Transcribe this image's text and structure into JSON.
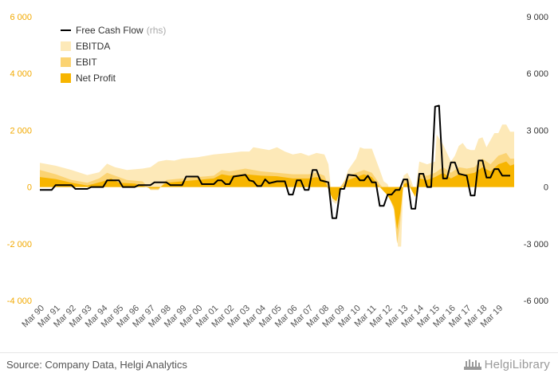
{
  "chart_data": {
    "type": "area",
    "title": "",
    "colors": {
      "ebitda": "#fde9b8",
      "ebit": "#fbd372",
      "net_profit": "#f7b500",
      "fcf": "#000000",
      "left_axis_text": "#f2a900",
      "right_axis_text": "#333333"
    },
    "left_axis": {
      "ylim": [
        -4000,
        6000
      ],
      "ticks": [
        "-4 000",
        "-2 000",
        "0",
        "2 000",
        "4 000",
        "6 000"
      ],
      "tick_values": [
        -4000,
        -2000,
        0,
        2000,
        4000,
        6000
      ]
    },
    "right_axis": {
      "ylim": [
        -6000,
        9000
      ],
      "ticks": [
        "-6 000",
        "-3 000",
        "0",
        "3 000",
        "6 000",
        "9 000"
      ],
      "tick_values": [
        -6000,
        -3000,
        0,
        3000,
        6000,
        9000
      ]
    },
    "x_labels": [
      "Mar 90",
      "Mar 91",
      "Mar 92",
      "Mar 93",
      "Mar 94",
      "Mar 95",
      "Mar 96",
      "Mar 97",
      "Mar 98",
      "Mar 99",
      "Mar 00",
      "Mar 01",
      "Mar 02",
      "Mar 03",
      "Mar 04",
      "Mar 05",
      "Mar 06",
      "Mar 07",
      "Mar 08",
      "Mar 09",
      "Mar 10",
      "Mar 11",
      "Mar 12",
      "Mar 13",
      "Mar 14",
      "Mar 15",
      "Mar 16",
      "Mar 17",
      "Mar 18",
      "Mar 19"
    ],
    "x_range": [
      1990.0,
      2020.0
    ],
    "legend_position": "top-left",
    "legend": [
      {
        "key": "fcf",
        "label": "Free Cash Flow",
        "suffix": "(rhs)",
        "kind": "line"
      },
      {
        "key": "ebitda",
        "label": "EBITDA",
        "kind": "area"
      },
      {
        "key": "ebit",
        "label": "EBIT",
        "kind": "area"
      },
      {
        "key": "net_profit",
        "label": "Net Profit",
        "kind": "area"
      }
    ],
    "series": [
      {
        "name": "EBITDA",
        "key": "ebitda",
        "axis": "left",
        "points": [
          [
            1990.0,
            850
          ],
          [
            1991.0,
            750
          ],
          [
            1992.0,
            600
          ],
          [
            1993.0,
            420
          ],
          [
            1993.75,
            520
          ],
          [
            1994.25,
            820
          ],
          [
            1994.75,
            700
          ],
          [
            1995.5,
            600
          ],
          [
            1996.5,
            650
          ],
          [
            1997.0,
            700
          ],
          [
            1997.5,
            900
          ],
          [
            1998.0,
            950
          ],
          [
            1998.5,
            930
          ],
          [
            1999.0,
            1000
          ],
          [
            2000.0,
            1050
          ],
          [
            2001.0,
            1150
          ],
          [
            2002.0,
            1200
          ],
          [
            2002.75,
            1250
          ],
          [
            2003.25,
            1250
          ],
          [
            2003.5,
            1400
          ],
          [
            2004.0,
            1350
          ],
          [
            2004.5,
            1300
          ],
          [
            2005.0,
            1400
          ],
          [
            2005.5,
            1250
          ],
          [
            2006.0,
            1150
          ],
          [
            2006.5,
            1200
          ],
          [
            2007.0,
            1100
          ],
          [
            2007.5,
            1200
          ],
          [
            2008.0,
            1150
          ],
          [
            2008.25,
            800
          ],
          [
            2008.5,
            -500
          ],
          [
            2008.75,
            -600
          ],
          [
            2009.0,
            -200
          ],
          [
            2009.5,
            600
          ],
          [
            2010.0,
            1000
          ],
          [
            2010.25,
            1400
          ],
          [
            2010.5,
            1350
          ],
          [
            2011.0,
            1350
          ],
          [
            2011.5,
            600
          ],
          [
            2011.75,
            200
          ],
          [
            2012.0,
            100
          ],
          [
            2012.3,
            -400
          ],
          [
            2012.5,
            -800
          ],
          [
            2012.65,
            -2100
          ],
          [
            2012.85,
            -2100
          ],
          [
            2013.0,
            400
          ],
          [
            2013.25,
            500
          ],
          [
            2013.5,
            200
          ],
          [
            2013.75,
            -200
          ],
          [
            2014.0,
            900
          ],
          [
            2014.5,
            800
          ],
          [
            2015.0,
            900
          ],
          [
            2015.1,
            1850
          ],
          [
            2015.5,
            1500
          ],
          [
            2016.0,
            900
          ],
          [
            2016.25,
            1100
          ],
          [
            2016.5,
            1450
          ],
          [
            2016.75,
            1550
          ],
          [
            2017.0,
            1350
          ],
          [
            2017.25,
            1300
          ],
          [
            2017.5,
            1300
          ],
          [
            2017.75,
            1700
          ],
          [
            2018.0,
            1750
          ],
          [
            2018.25,
            1400
          ],
          [
            2018.75,
            1900
          ],
          [
            2019.0,
            1900
          ],
          [
            2019.25,
            2200
          ],
          [
            2019.5,
            2200
          ],
          [
            2019.75,
            1950
          ],
          [
            2020.0,
            1950
          ]
        ]
      },
      {
        "name": "EBIT",
        "key": "ebit",
        "axis": "left",
        "points": [
          [
            1990.0,
            600
          ],
          [
            1991.0,
            450
          ],
          [
            1992.0,
            250
          ],
          [
            1993.0,
            150
          ],
          [
            1993.75,
            300
          ],
          [
            1994.25,
            500
          ],
          [
            1994.75,
            400
          ],
          [
            1995.5,
            250
          ],
          [
            1996.5,
            200
          ],
          [
            1997.0,
            -100
          ],
          [
            1997.5,
            -100
          ],
          [
            1998.0,
            250
          ],
          [
            1999.0,
            300
          ],
          [
            2000.0,
            350
          ],
          [
            2001.0,
            400
          ],
          [
            2001.5,
            600
          ],
          [
            2002.0,
            550
          ],
          [
            2003.0,
            650
          ],
          [
            2003.5,
            600
          ],
          [
            2004.0,
            550
          ],
          [
            2005.0,
            500
          ],
          [
            2006.0,
            450
          ],
          [
            2007.0,
            450
          ],
          [
            2007.5,
            500
          ],
          [
            2008.0,
            400
          ],
          [
            2008.5,
            -300
          ],
          [
            2008.75,
            -400
          ],
          [
            2009.0,
            0
          ],
          [
            2009.5,
            400
          ],
          [
            2010.0,
            500
          ],
          [
            2010.5,
            600
          ],
          [
            2011.0,
            500
          ],
          [
            2011.5,
            100
          ],
          [
            2012.0,
            -200
          ],
          [
            2012.4,
            -800
          ],
          [
            2012.6,
            -2000
          ],
          [
            2012.8,
            -1200
          ],
          [
            2013.0,
            200
          ],
          [
            2013.25,
            300
          ],
          [
            2013.5,
            0
          ],
          [
            2013.75,
            -300
          ],
          [
            2014.0,
            450
          ],
          [
            2014.5,
            400
          ],
          [
            2015.0,
            500
          ],
          [
            2015.5,
            700
          ],
          [
            2016.0,
            500
          ],
          [
            2016.5,
            700
          ],
          [
            2017.0,
            650
          ],
          [
            2017.5,
            700
          ],
          [
            2018.0,
            1000
          ],
          [
            2018.5,
            800
          ],
          [
            2019.0,
            1100
          ],
          [
            2019.5,
            1200
          ],
          [
            2019.75,
            1000
          ],
          [
            2020.0,
            1000
          ]
        ]
      },
      {
        "name": "Net Profit",
        "key": "net_profit",
        "axis": "left",
        "points": [
          [
            1990.0,
            350
          ],
          [
            1991.0,
            280
          ],
          [
            1992.0,
            150
          ],
          [
            1993.0,
            50
          ],
          [
            1994.0,
            200
          ],
          [
            1994.5,
            300
          ],
          [
            1995.0,
            150
          ],
          [
            1996.0,
            120
          ],
          [
            1997.0,
            -50
          ],
          [
            1997.5,
            -50
          ],
          [
            1998.0,
            150
          ],
          [
            1999.0,
            200
          ],
          [
            2000.0,
            250
          ],
          [
            2001.0,
            300
          ],
          [
            2001.5,
            450
          ],
          [
            2002.0,
            400
          ],
          [
            2003.0,
            450
          ],
          [
            2004.0,
            400
          ],
          [
            2005.0,
            380
          ],
          [
            2006.0,
            300
          ],
          [
            2007.0,
            300
          ],
          [
            2007.5,
            350
          ],
          [
            2008.0,
            250
          ],
          [
            2008.5,
            -400
          ],
          [
            2008.75,
            -500
          ],
          [
            2009.0,
            -100
          ],
          [
            2009.5,
            250
          ],
          [
            2010.0,
            350
          ],
          [
            2010.5,
            450
          ],
          [
            2011.0,
            350
          ],
          [
            2011.5,
            0
          ],
          [
            2012.0,
            -300
          ],
          [
            2012.4,
            -700
          ],
          [
            2012.6,
            -1500
          ],
          [
            2012.8,
            -900
          ],
          [
            2013.0,
            100
          ],
          [
            2013.25,
            150
          ],
          [
            2013.5,
            -100
          ],
          [
            2013.75,
            -350
          ],
          [
            2014.0,
            300
          ],
          [
            2014.5,
            250
          ],
          [
            2015.0,
            350
          ],
          [
            2015.5,
            500
          ],
          [
            2016.0,
            300
          ],
          [
            2016.5,
            450
          ],
          [
            2017.0,
            450
          ],
          [
            2017.5,
            500
          ],
          [
            2018.0,
            700
          ],
          [
            2018.5,
            550
          ],
          [
            2019.0,
            800
          ],
          [
            2019.5,
            900
          ],
          [
            2019.75,
            750
          ],
          [
            2020.0,
            800
          ]
        ]
      },
      {
        "name": "Free Cash Flow",
        "key": "fcf",
        "axis": "right",
        "points": [
          [
            1990.0,
            -150
          ],
          [
            1990.75,
            -150
          ],
          [
            1991.0,
            100
          ],
          [
            1992.0,
            100
          ],
          [
            1992.25,
            -100
          ],
          [
            1993.0,
            -100
          ],
          [
            1993.25,
            0
          ],
          [
            1994.0,
            0
          ],
          [
            1994.25,
            350
          ],
          [
            1995.0,
            350
          ],
          [
            1995.25,
            0
          ],
          [
            1996.0,
            0
          ],
          [
            1996.25,
            100
          ],
          [
            1997.0,
            100
          ],
          [
            1997.25,
            250
          ],
          [
            1998.0,
            250
          ],
          [
            1998.25,
            100
          ],
          [
            1999.0,
            100
          ],
          [
            1999.25,
            550
          ],
          [
            2000.0,
            550
          ],
          [
            2000.25,
            150
          ],
          [
            2001.0,
            150
          ],
          [
            2001.25,
            350
          ],
          [
            2001.5,
            350
          ],
          [
            2001.75,
            150
          ],
          [
            2002.0,
            150
          ],
          [
            2002.25,
            550
          ],
          [
            2003.0,
            650
          ],
          [
            2003.25,
            350
          ],
          [
            2003.5,
            300
          ],
          [
            2003.75,
            50
          ],
          [
            2004.0,
            50
          ],
          [
            2004.25,
            400
          ],
          [
            2004.5,
            200
          ],
          [
            2005.0,
            300
          ],
          [
            2005.5,
            300
          ],
          [
            2005.75,
            -400
          ],
          [
            2006.0,
            -400
          ],
          [
            2006.25,
            350
          ],
          [
            2006.5,
            350
          ],
          [
            2006.75,
            -150
          ],
          [
            2007.0,
            -150
          ],
          [
            2007.25,
            900
          ],
          [
            2007.5,
            900
          ],
          [
            2007.75,
            350
          ],
          [
            2008.0,
            300
          ],
          [
            2008.25,
            250
          ],
          [
            2008.5,
            -1650
          ],
          [
            2008.75,
            -1650
          ],
          [
            2009.0,
            -100
          ],
          [
            2009.25,
            -100
          ],
          [
            2009.5,
            650
          ],
          [
            2010.0,
            600
          ],
          [
            2010.25,
            350
          ],
          [
            2010.5,
            350
          ],
          [
            2010.75,
            600
          ],
          [
            2011.0,
            250
          ],
          [
            2011.25,
            250
          ],
          [
            2011.5,
            -1000
          ],
          [
            2011.75,
            -1000
          ],
          [
            2012.0,
            -400
          ],
          [
            2012.25,
            -400
          ],
          [
            2012.5,
            -150
          ],
          [
            2012.75,
            -150
          ],
          [
            2013.0,
            400
          ],
          [
            2013.25,
            400
          ],
          [
            2013.5,
            -1150
          ],
          [
            2013.75,
            -1150
          ],
          [
            2014.0,
            700
          ],
          [
            2014.25,
            700
          ],
          [
            2014.5,
            0
          ],
          [
            2014.75,
            0
          ],
          [
            2015.0,
            4250
          ],
          [
            2015.25,
            4300
          ],
          [
            2015.5,
            450
          ],
          [
            2015.75,
            450
          ],
          [
            2016.0,
            1300
          ],
          [
            2016.25,
            1300
          ],
          [
            2016.5,
            700
          ],
          [
            2016.75,
            650
          ],
          [
            2017.0,
            600
          ],
          [
            2017.25,
            -450
          ],
          [
            2017.5,
            -450
          ],
          [
            2017.75,
            1400
          ],
          [
            2018.0,
            1400
          ],
          [
            2018.25,
            500
          ],
          [
            2018.5,
            500
          ],
          [
            2018.75,
            950
          ],
          [
            2019.0,
            950
          ],
          [
            2019.25,
            600
          ],
          [
            2019.5,
            600
          ],
          [
            2019.75,
            600
          ]
        ]
      }
    ]
  },
  "footer": {
    "source": "Source: Company Data, Helgi Analytics",
    "brand": "HelgiLibrary"
  }
}
